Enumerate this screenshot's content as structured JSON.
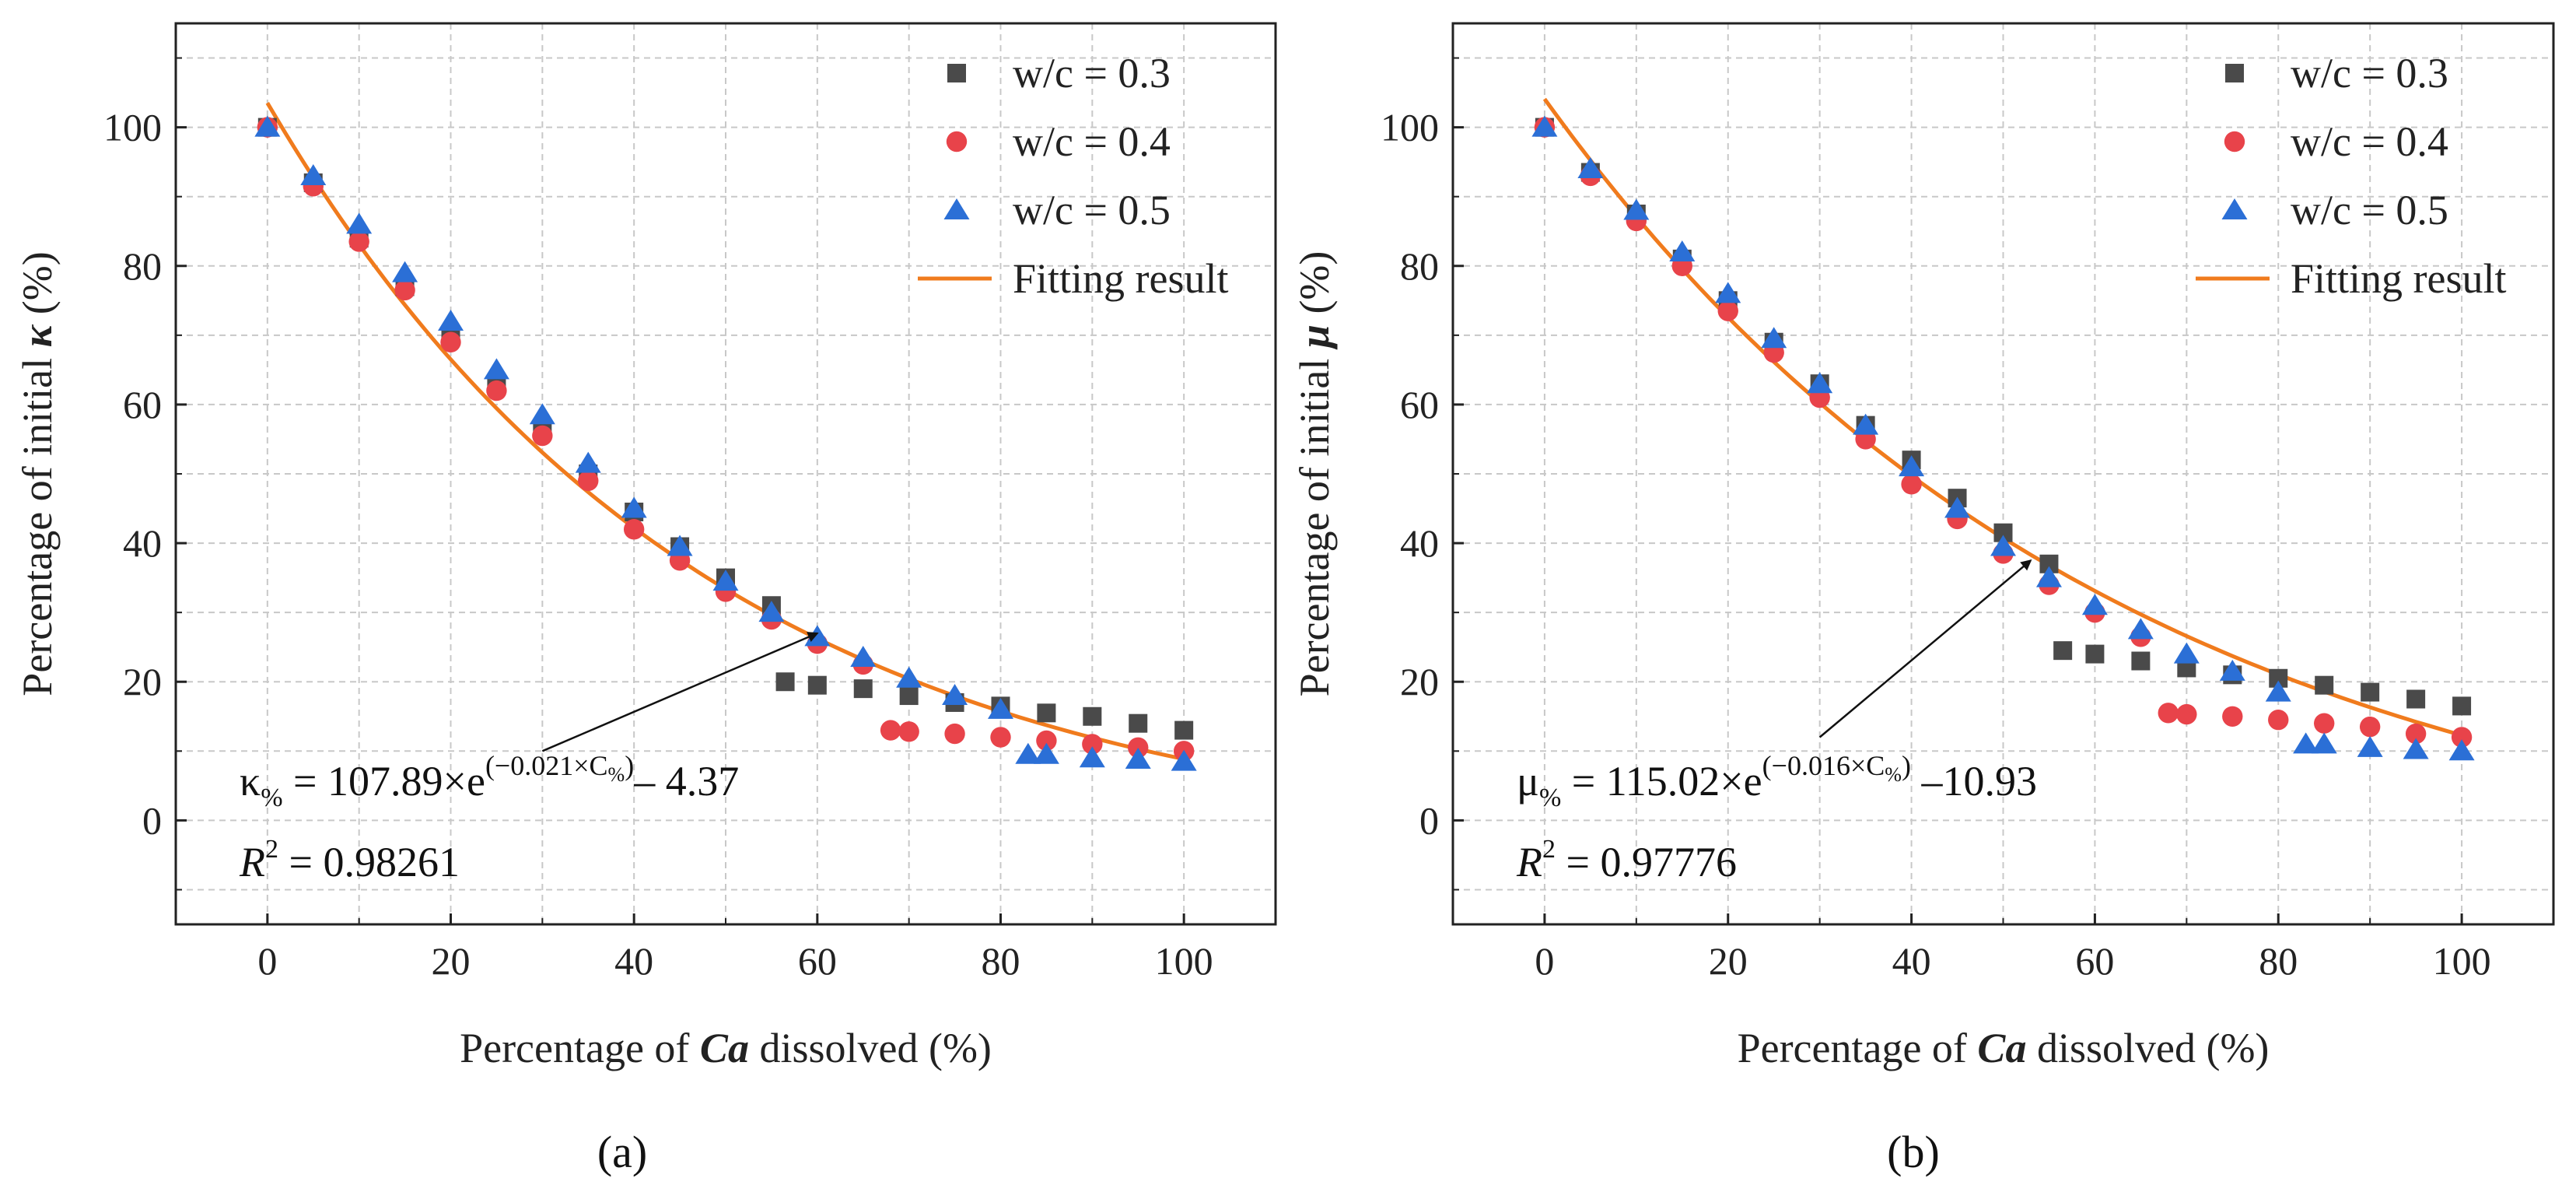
{
  "colors": {
    "s03": "#4a4a4a",
    "s04": "#e8434a",
    "s05": "#2b6fd6",
    "fit": "#f07b1d",
    "grid": "#c8c8c8",
    "axis": "#222222"
  },
  "chart_data": [
    {
      "type": "scatter",
      "panel_label": "(a)",
      "xlabel_pre": "Percentage of ",
      "xlabel_em": "Ca",
      "xlabel_post": " dissolved (%)",
      "ylabel_pre": "Percentage of initial ",
      "ylabel_sym": "κ",
      "ylabel_post": " (%)",
      "xlim": [
        -10,
        110
      ],
      "ylim": [
        -15,
        115
      ],
      "xticks": [
        0,
        20,
        40,
        60,
        80,
        100
      ],
      "yticks": [
        0,
        20,
        40,
        60,
        80,
        100
      ],
      "grid": true,
      "legend_position": "top-right",
      "series": [
        {
          "name": "w/c = 0.3",
          "marker": "square",
          "color": "#4a4a4a",
          "x": [
            0,
            5,
            10,
            15,
            20,
            25,
            30,
            35,
            40,
            45,
            50,
            55,
            56.5,
            60,
            65,
            70,
            75,
            80,
            85,
            90,
            95,
            100
          ],
          "y": [
            100,
            92,
            84,
            77,
            70,
            63,
            56.5,
            50,
            44.5,
            39.5,
            35,
            31,
            20,
            19.5,
            19,
            18,
            17,
            16.5,
            15.5,
            15,
            14,
            13
          ]
        },
        {
          "name": "w/c = 0.4",
          "marker": "circle",
          "color": "#e8434a",
          "x": [
            0,
            5,
            10,
            15,
            20,
            25,
            30,
            35,
            40,
            45,
            50,
            55,
            60,
            65,
            68,
            70,
            75,
            80,
            85,
            90,
            95,
            100
          ],
          "y": [
            100,
            91.5,
            83.5,
            76.5,
            69,
            62,
            55.5,
            49,
            42,
            37.5,
            33,
            29,
            25.5,
            22.5,
            13,
            12.8,
            12.5,
            12,
            11.5,
            11,
            10.5,
            10
          ]
        },
        {
          "name": "w/c = 0.5",
          "marker": "triangle",
          "color": "#2b6fd6",
          "x": [
            0,
            5,
            10,
            15,
            20,
            25,
            30,
            35,
            40,
            45,
            50,
            55,
            60,
            65,
            70,
            75,
            80,
            83,
            85,
            90,
            95,
            100
          ],
          "y": [
            100,
            93,
            86,
            79,
            72,
            65,
            58.5,
            51.5,
            45,
            39.5,
            34.5,
            30,
            26.5,
            23.5,
            20.5,
            18,
            16,
            9.5,
            9.5,
            9,
            8.8,
            8.5
          ]
        }
      ],
      "fit": {
        "name": "Fitting result",
        "a": 107.89,
        "b": 0.021,
        "c": -4.37,
        "x_range": [
          0,
          100
        ],
        "color": "#f07b1d"
      },
      "equation": {
        "lhs": "κ",
        "lhs_sub": "%",
        "mid": " = 107.89×e",
        "exp": "(−0.021×C",
        "exp_sub": "%",
        "exp_close": ")",
        "tail": "– 4.37",
        "r2_label": "R",
        "r2_sup": "2",
        "r2_value": " = 0.98261"
      },
      "arrow": {
        "from": [
          30,
          10
        ],
        "to": [
          60,
          27
        ]
      }
    },
    {
      "type": "scatter",
      "panel_label": "(b)",
      "xlabel_pre": "Percentage of ",
      "xlabel_em": "Ca",
      "xlabel_post": " dissolved (%)",
      "ylabel_pre": "Percentage of initial ",
      "ylabel_sym": "μ",
      "ylabel_post": " (%)",
      "xlim": [
        -10,
        110
      ],
      "ylim": [
        -15,
        115
      ],
      "xticks": [
        0,
        20,
        40,
        60,
        80,
        100
      ],
      "yticks": [
        0,
        20,
        40,
        60,
        80,
        100
      ],
      "grid": true,
      "legend_position": "top-right",
      "series": [
        {
          "name": "w/c = 0.3",
          "marker": "square",
          "color": "#4a4a4a",
          "x": [
            0,
            5,
            10,
            15,
            20,
            25,
            30,
            35,
            40,
            45,
            50,
            55,
            56.5,
            60,
            65,
            70,
            75,
            80,
            85,
            90,
            95,
            100
          ],
          "y": [
            100,
            93.5,
            87.5,
            81,
            75,
            69,
            63,
            57,
            52,
            46.5,
            41.5,
            37,
            24.5,
            24,
            23,
            22,
            21,
            20.5,
            19.5,
            18.5,
            17.5,
            16.5
          ]
        },
        {
          "name": "w/c = 0.4",
          "marker": "circle",
          "color": "#e8434a",
          "x": [
            0,
            5,
            10,
            15,
            20,
            25,
            30,
            35,
            40,
            45,
            50,
            55,
            60,
            65,
            68,
            70,
            75,
            80,
            85,
            90,
            95,
            100
          ],
          "y": [
            100,
            93,
            86.5,
            80,
            73.5,
            67.5,
            61,
            55,
            48.5,
            43.5,
            38.5,
            34,
            30,
            26.5,
            15.5,
            15.3,
            15,
            14.5,
            14,
            13.5,
            12.5,
            12
          ]
        },
        {
          "name": "w/c = 0.5",
          "marker": "triangle",
          "color": "#2b6fd6",
          "x": [
            0,
            5,
            10,
            15,
            20,
            25,
            30,
            35,
            40,
            45,
            50,
            55,
            60,
            65,
            70,
            75,
            80,
            83,
            85,
            90,
            95,
            100
          ],
          "y": [
            100,
            94,
            88,
            82,
            76,
            69.5,
            63,
            57,
            51,
            45,
            39.5,
            35,
            31,
            27.5,
            24,
            21.5,
            18.5,
            11,
            11,
            10.5,
            10.2,
            10
          ]
        }
      ],
      "fit": {
        "name": "Fitting result",
        "a": 115.02,
        "b": 0.016,
        "c": -10.93,
        "x_range": [
          0,
          100
        ],
        "color": "#f07b1d"
      },
      "equation": {
        "lhs": "μ",
        "lhs_sub": "%",
        "mid": " = 115.02×e",
        "exp": "(−0.016×C",
        "exp_sub": "%",
        "exp_close": ")",
        "tail": " –10.93",
        "r2_label": "R",
        "r2_sup": "2",
        "r2_value": " = 0.97776"
      },
      "arrow": {
        "from": [
          30,
          12
        ],
        "to": [
          53,
          37.5
        ]
      }
    }
  ]
}
